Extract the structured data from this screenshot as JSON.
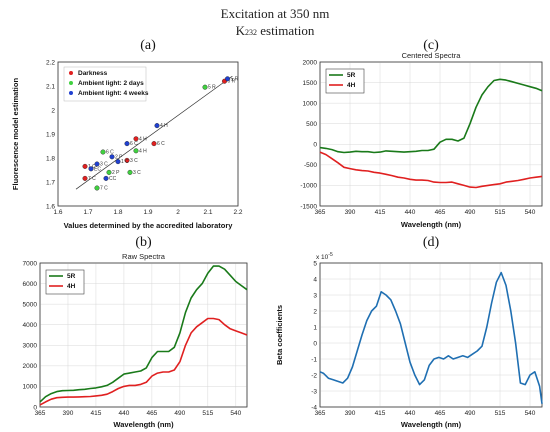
{
  "figure": {
    "title": "Excitation at 350 nm",
    "subtitle_main": "K",
    "subtitle_sub": "232",
    "subtitle_rest": " estimation"
  },
  "chart_data": [
    {
      "id": "a",
      "panel_label": "(a)",
      "type": "scatter",
      "title": "",
      "xlabel": "Values determined by the accredited laboratory",
      "ylabel": "Fluorescence model estimation",
      "xlim": [
        1.6,
        2.2
      ],
      "ylim": [
        1.6,
        2.2
      ],
      "xticks": [
        "1.6",
        "1.7",
        "1.8",
        "1.9",
        "2",
        "2.1",
        "2.2"
      ],
      "yticks": [
        "1.6",
        "1.7",
        "1.8",
        "1.9",
        "2",
        "2.1",
        "2.2"
      ],
      "grid": false,
      "legend_position": "top-left",
      "series": [
        {
          "name": "Darkness",
          "color": "#e02020",
          "points": [
            {
              "x": 1.69,
              "y": 1.765,
              "label": "1 C"
            },
            {
              "x": 1.69,
              "y": 1.715,
              "label": "7 C"
            },
            {
              "x": 1.83,
              "y": 1.79,
              "label": "3 C"
            },
            {
              "x": 1.86,
              "y": 1.88,
              "label": "4 H"
            },
            {
              "x": 1.92,
              "y": 1.86,
              "label": "6 C"
            },
            {
              "x": 2.155,
              "y": 2.12,
              "label": "5 R"
            }
          ]
        },
        {
          "name": "Ambient light: 2 days",
          "color": "#40d040",
          "points": [
            {
              "x": 1.75,
              "y": 1.825,
              "label": "6 C"
            },
            {
              "x": 1.77,
              "y": 1.74,
              "label": "2 P"
            },
            {
              "x": 1.84,
              "y": 1.74,
              "label": "3 C"
            },
            {
              "x": 1.86,
              "y": 1.83,
              "label": "4 H"
            },
            {
              "x": 1.73,
              "y": 1.675,
              "label": "7 C"
            },
            {
              "x": 2.09,
              "y": 2.095,
              "label": "5 R"
            }
          ]
        },
        {
          "name": "Ambient light: 4 weeks",
          "color": "#2040d0",
          "points": [
            {
              "x": 1.71,
              "y": 1.755,
              "label": "EC"
            },
            {
              "x": 1.73,
              "y": 1.775,
              "label": "3 C"
            },
            {
              "x": 1.78,
              "y": 1.805,
              "label": "2 P"
            },
            {
              "x": 1.8,
              "y": 1.785,
              "label": "1 C"
            },
            {
              "x": 1.83,
              "y": 1.86,
              "label": "6 C"
            },
            {
              "x": 1.93,
              "y": 1.935,
              "label": "4 H"
            },
            {
              "x": 1.76,
              "y": 1.715,
              "label": "CC"
            },
            {
              "x": 2.165,
              "y": 2.13,
              "label": "5 R"
            }
          ]
        }
      ],
      "fit_line": {
        "x": [
          1.66,
          2.18
        ],
        "y": [
          1.67,
          2.14
        ]
      }
    },
    {
      "id": "b",
      "panel_label": "(b)",
      "type": "line",
      "title": "Raw Spectra",
      "xlabel": "Wavelength (nm)",
      "ylabel": "",
      "xlim": [
        365,
        550
      ],
      "ylim": [
        0,
        7000
      ],
      "xticks": [
        "365",
        "390",
        "415",
        "440",
        "465",
        "490",
        "515",
        "540"
      ],
      "yticks": [
        "0",
        "1000",
        "2000",
        "3000",
        "4000",
        "5000",
        "6000",
        "7000"
      ],
      "grid": true,
      "legend_position": "top-left",
      "x": [
        365,
        370,
        375,
        380,
        385,
        390,
        395,
        400,
        405,
        410,
        415,
        420,
        425,
        430,
        435,
        440,
        445,
        450,
        455,
        460,
        465,
        470,
        475,
        480,
        485,
        490,
        495,
        500,
        505,
        510,
        515,
        520,
        525,
        530,
        535,
        540,
        545,
        550
      ],
      "series": [
        {
          "name": "5R",
          "color": "#1a7a1a",
          "values": [
            250,
            500,
            650,
            750,
            790,
            800,
            810,
            840,
            860,
            900,
            930,
            980,
            1050,
            1200,
            1400,
            1600,
            1650,
            1700,
            1750,
            1900,
            2400,
            2700,
            2700,
            2700,
            2900,
            3600,
            4600,
            5300,
            5700,
            6000,
            6500,
            6850,
            6850,
            6700,
            6400,
            6100,
            5900,
            5700
          ]
        },
        {
          "name": "4H",
          "color": "#e02020",
          "values": [
            100,
            250,
            380,
            450,
            470,
            480,
            480,
            490,
            500,
            510,
            540,
            570,
            620,
            750,
            900,
            1000,
            1050,
            1050,
            1100,
            1200,
            1500,
            1650,
            1700,
            1700,
            1800,
            2200,
            3000,
            3600,
            3900,
            4100,
            4300,
            4300,
            4250,
            4000,
            3800,
            3700,
            3600,
            3500
          ]
        }
      ]
    },
    {
      "id": "c",
      "panel_label": "(c)",
      "type": "line",
      "title": "Centered Spectra",
      "xlabel": "Wavelength (nm)",
      "ylabel": "",
      "xlim": [
        365,
        550
      ],
      "ylim": [
        -1500,
        2000
      ],
      "xticks": [
        "365",
        "390",
        "415",
        "440",
        "465",
        "490",
        "515",
        "540"
      ],
      "yticks": [
        "-1500",
        "-1000",
        "-500",
        "0",
        "500",
        "1000",
        "1500",
        "2000"
      ],
      "grid": true,
      "legend_position": "top-left",
      "x": [
        365,
        370,
        375,
        380,
        385,
        390,
        395,
        400,
        405,
        410,
        415,
        420,
        425,
        430,
        435,
        440,
        445,
        450,
        455,
        460,
        465,
        470,
        475,
        480,
        485,
        490,
        495,
        500,
        505,
        510,
        515,
        520,
        525,
        530,
        535,
        540,
        545,
        550
      ],
      "series": [
        {
          "name": "5R",
          "color": "#1a7a1a",
          "values": [
            -80,
            -100,
            -130,
            -180,
            -200,
            -190,
            -170,
            -180,
            -180,
            -200,
            -190,
            -160,
            -170,
            -180,
            -190,
            -180,
            -170,
            -150,
            -150,
            -120,
            50,
            120,
            120,
            80,
            150,
            500,
            900,
            1200,
            1400,
            1550,
            1580,
            1560,
            1520,
            1480,
            1440,
            1400,
            1360,
            1300
          ]
        },
        {
          "name": "4H",
          "color": "#e02020",
          "values": [
            -190,
            -250,
            -350,
            -450,
            -560,
            -590,
            -620,
            -640,
            -650,
            -680,
            -700,
            -730,
            -760,
            -800,
            -820,
            -850,
            -870,
            -870,
            -880,
            -920,
            -930,
            -930,
            -920,
            -960,
            -1000,
            -1040,
            -1050,
            -1020,
            -1000,
            -980,
            -960,
            -920,
            -900,
            -880,
            -850,
            -820,
            -800,
            -780
          ]
        }
      ]
    },
    {
      "id": "d",
      "panel_label": "(d)",
      "type": "line",
      "title": "",
      "xlabel": "Wavelength (nm)",
      "ylabel": "Beta coefficients",
      "xlim": [
        365,
        550
      ],
      "ylim": [
        -4,
        5
      ],
      "yscale_label": "x 10",
      "yscale_exp": "-5",
      "xticks": [
        "365",
        "390",
        "415",
        "440",
        "465",
        "490",
        "515",
        "540"
      ],
      "yticks": [
        "-4",
        "-3",
        "-2",
        "-1",
        "0",
        "1",
        "2",
        "3",
        "4",
        "5"
      ],
      "grid": true,
      "legend_position": "none",
      "x": [
        365,
        368,
        372,
        376,
        380,
        384,
        388,
        392,
        396,
        400,
        404,
        408,
        412,
        416,
        420,
        424,
        428,
        432,
        436,
        440,
        444,
        448,
        452,
        456,
        460,
        464,
        468,
        472,
        476,
        480,
        484,
        488,
        492,
        496,
        500,
        504,
        508,
        512,
        516,
        520,
        524,
        528,
        532,
        536,
        540,
        544,
        548,
        550
      ],
      "series": [
        {
          "name": "",
          "color": "#1f6fb2",
          "values": [
            -1.8,
            -1.9,
            -2.2,
            -2.3,
            -2.4,
            -2.5,
            -2.2,
            -1.5,
            -0.5,
            0.5,
            1.4,
            2.0,
            2.3,
            3.2,
            3.0,
            2.7,
            2.0,
            1.2,
            0.0,
            -1.2,
            -2.0,
            -2.6,
            -2.3,
            -1.4,
            -1.0,
            -0.9,
            -1.0,
            -0.8,
            -1.0,
            -0.9,
            -0.8,
            -0.9,
            -0.7,
            -0.5,
            -0.2,
            1.0,
            2.5,
            3.8,
            4.4,
            3.6,
            2.0,
            0.0,
            -2.5,
            -2.6,
            -2.0,
            -1.8,
            -2.7,
            -3.8
          ]
        }
      ]
    }
  ]
}
